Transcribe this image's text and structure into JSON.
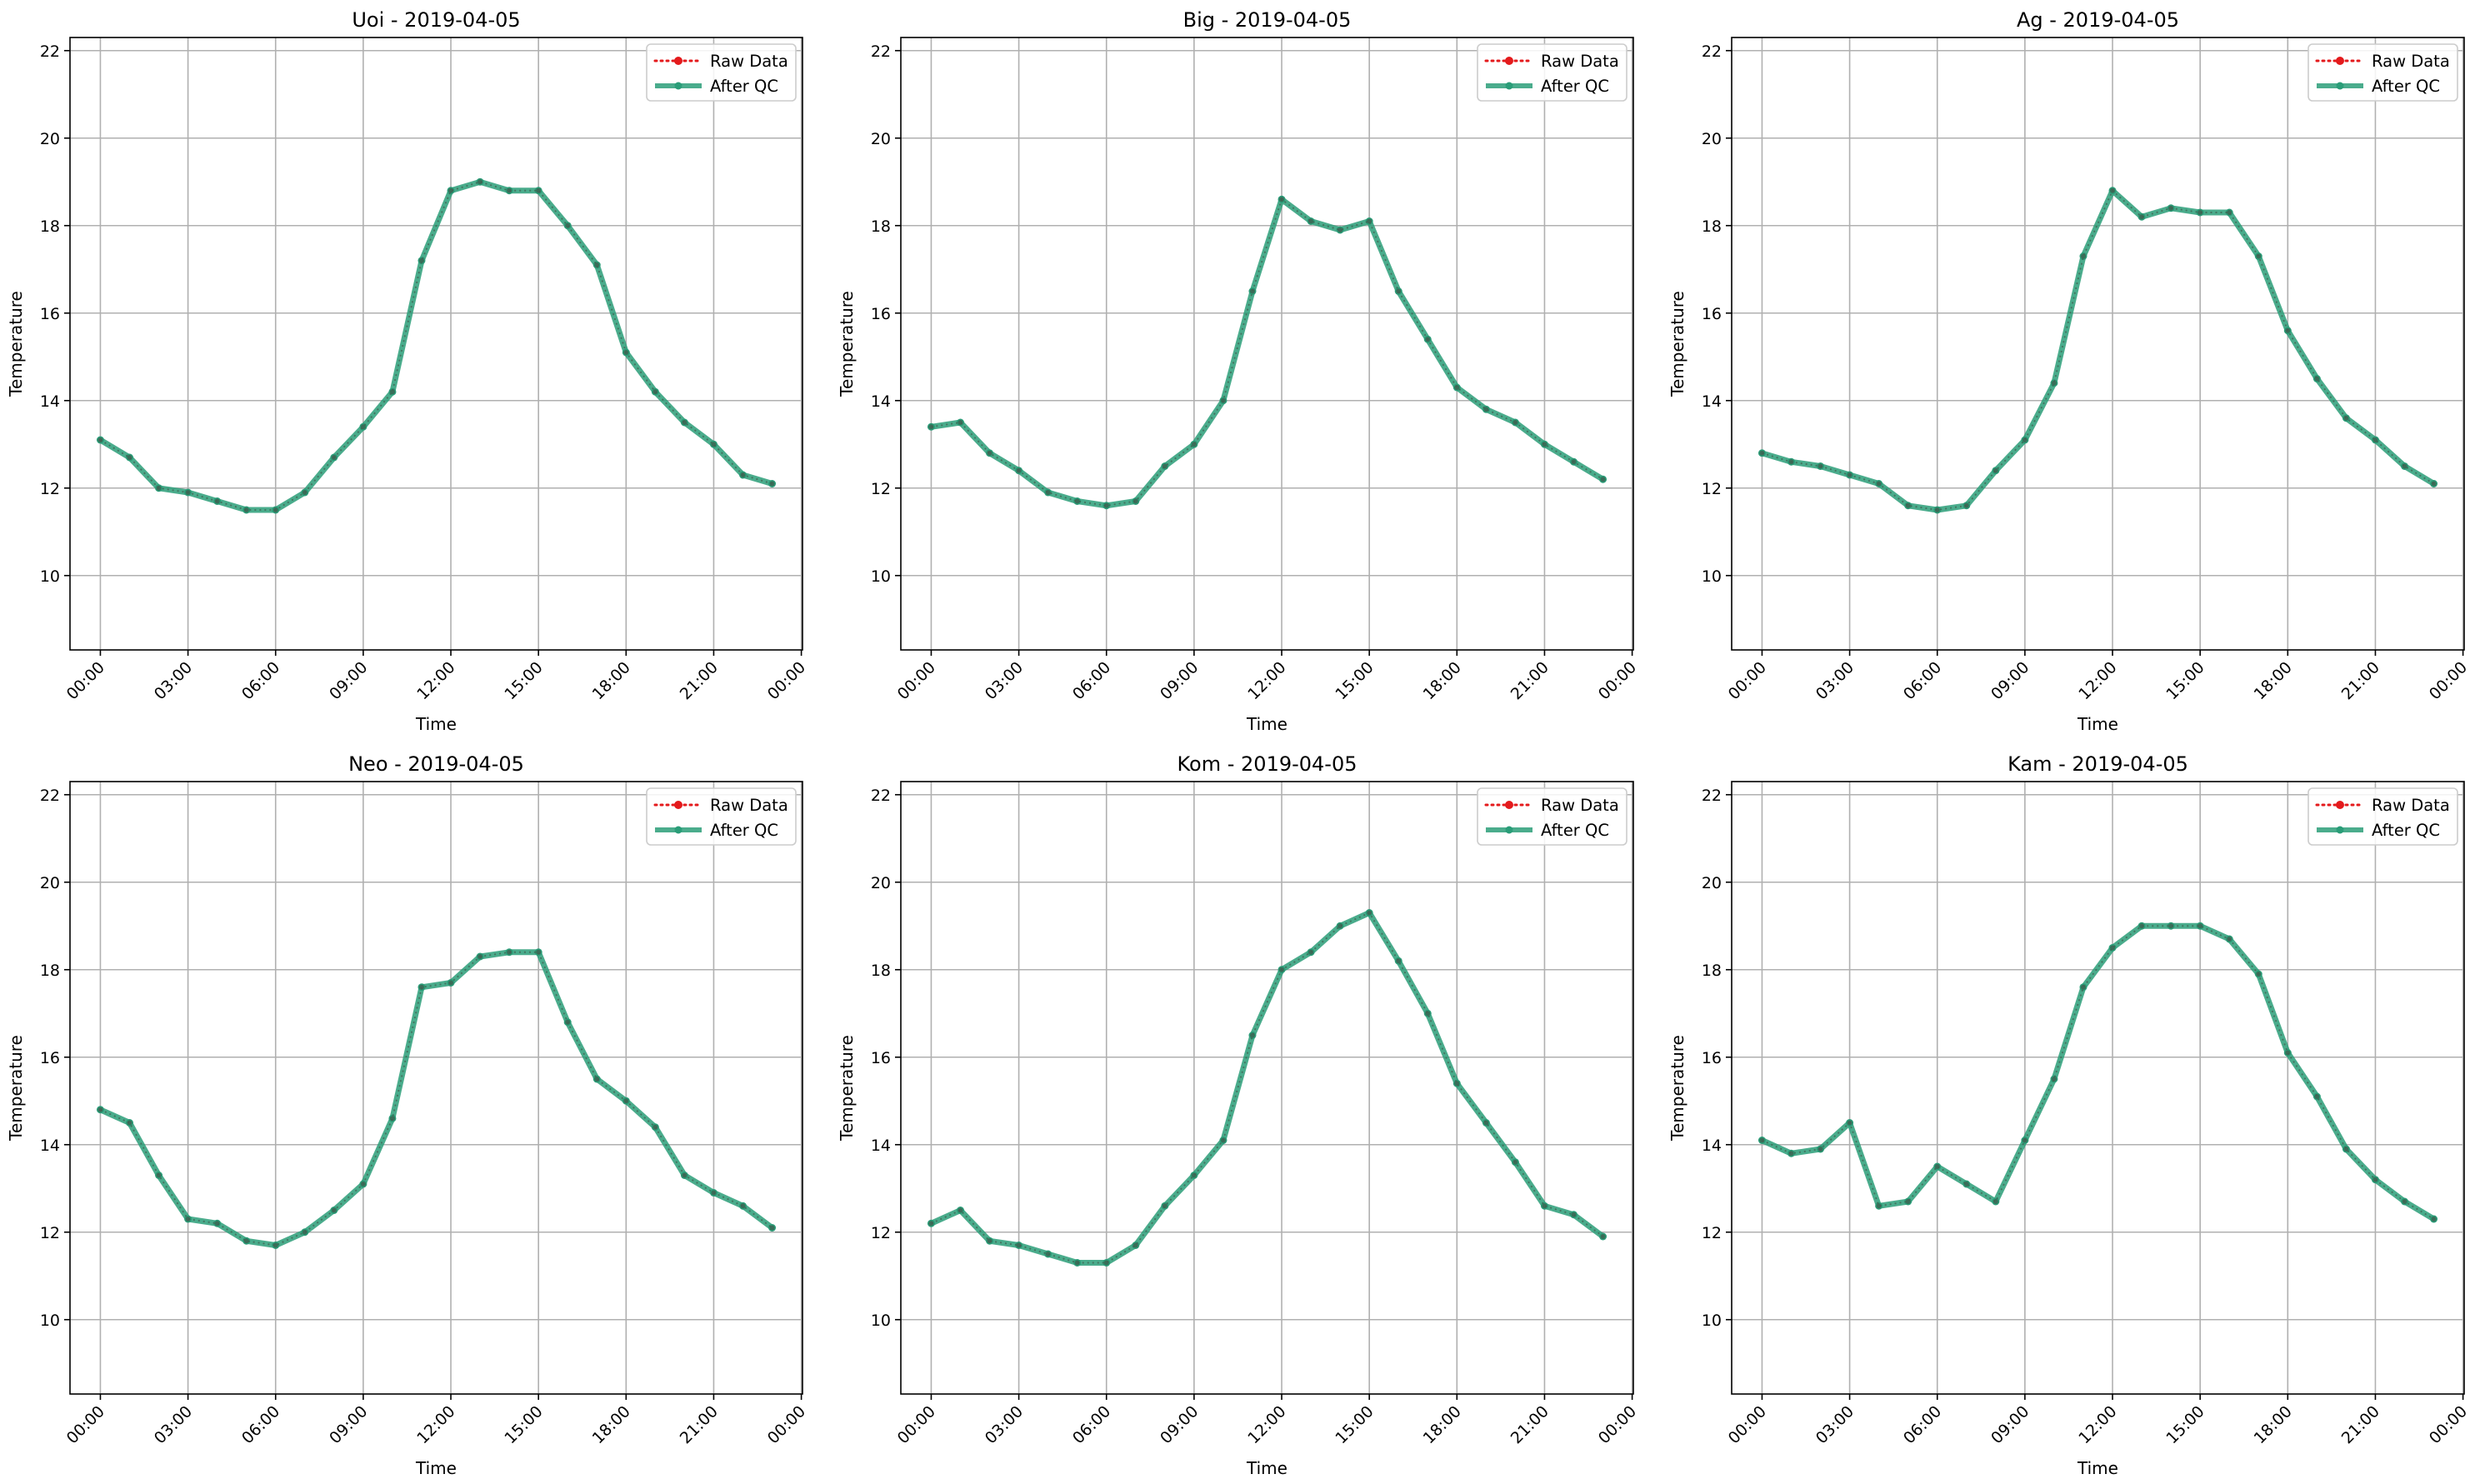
{
  "figure": {
    "series_styles": {
      "raw": {
        "name": "Raw Data",
        "color": "#e41a1c",
        "dash": "dotted"
      },
      "qc": {
        "name": "After QC",
        "color": "#2a9d78"
      }
    },
    "legend": {
      "raw": "Raw Data",
      "qc": "After QC"
    }
  },
  "chart_data": [
    {
      "type": "line",
      "title": "Uoi - 2019-04-05",
      "xlabel": "Time",
      "ylabel": "Temperature",
      "ylim": [
        8.3,
        22.3
      ],
      "yticks": [
        "10",
        "12",
        "14",
        "16",
        "18",
        "20",
        "22"
      ],
      "xticks": [
        "00:00",
        "03:00",
        "06:00",
        "09:00",
        "12:00",
        "15:00",
        "18:00",
        "21:00",
        "00:00"
      ],
      "x": [
        "00:00",
        "01:00",
        "02:00",
        "03:00",
        "04:00",
        "05:00",
        "06:00",
        "07:00",
        "08:00",
        "09:00",
        "10:00",
        "11:00",
        "12:00",
        "13:00",
        "14:00",
        "15:00",
        "16:00",
        "17:00",
        "18:00",
        "19:00",
        "20:00",
        "21:00",
        "22:00",
        "23:00"
      ],
      "series": [
        {
          "name": "Raw Data",
          "values": [
            13.1,
            12.7,
            12.0,
            11.9,
            11.7,
            11.5,
            11.5,
            11.9,
            12.7,
            13.4,
            14.2,
            17.2,
            18.8,
            19.0,
            18.8,
            18.8,
            18.0,
            17.1,
            15.1,
            14.2,
            13.5,
            13.0,
            12.3,
            12.1
          ]
        },
        {
          "name": "After QC",
          "values": [
            13.1,
            12.7,
            12.0,
            11.9,
            11.7,
            11.5,
            11.5,
            11.9,
            12.7,
            13.4,
            14.2,
            17.2,
            18.8,
            19.0,
            18.8,
            18.8,
            18.0,
            17.1,
            15.1,
            14.2,
            13.5,
            13.0,
            12.3,
            12.1
          ]
        }
      ],
      "grid": true,
      "legend_position": "top-right"
    },
    {
      "type": "line",
      "title": "Big - 2019-04-05",
      "xlabel": "Time",
      "ylabel": "Temperature",
      "ylim": [
        8.3,
        22.3
      ],
      "yticks": [
        "10",
        "12",
        "14",
        "16",
        "18",
        "20",
        "22"
      ],
      "xticks": [
        "00:00",
        "03:00",
        "06:00",
        "09:00",
        "12:00",
        "15:00",
        "18:00",
        "21:00",
        "00:00"
      ],
      "x": [
        "00:00",
        "01:00",
        "02:00",
        "03:00",
        "04:00",
        "05:00",
        "06:00",
        "07:00",
        "08:00",
        "09:00",
        "10:00",
        "11:00",
        "12:00",
        "13:00",
        "14:00",
        "15:00",
        "16:00",
        "17:00",
        "18:00",
        "19:00",
        "20:00",
        "21:00",
        "22:00",
        "23:00"
      ],
      "series": [
        {
          "name": "Raw Data",
          "values": [
            13.4,
            13.5,
            12.8,
            12.4,
            11.9,
            11.7,
            11.6,
            11.7,
            12.5,
            13.0,
            14.0,
            16.5,
            18.6,
            18.1,
            17.9,
            18.1,
            16.5,
            15.4,
            14.3,
            13.8,
            13.5,
            13.0,
            12.6,
            12.2
          ]
        },
        {
          "name": "After QC",
          "values": [
            13.4,
            13.5,
            12.8,
            12.4,
            11.9,
            11.7,
            11.6,
            11.7,
            12.5,
            13.0,
            14.0,
            16.5,
            18.6,
            18.1,
            17.9,
            18.1,
            16.5,
            15.4,
            14.3,
            13.8,
            13.5,
            13.0,
            12.6,
            12.2
          ]
        }
      ],
      "grid": true,
      "legend_position": "top-right"
    },
    {
      "type": "line",
      "title": "Ag - 2019-04-05",
      "xlabel": "Time",
      "ylabel": "Temperature",
      "ylim": [
        8.3,
        22.3
      ],
      "yticks": [
        "10",
        "12",
        "14",
        "16",
        "18",
        "20",
        "22"
      ],
      "xticks": [
        "00:00",
        "03:00",
        "06:00",
        "09:00",
        "12:00",
        "15:00",
        "18:00",
        "21:00",
        "00:00"
      ],
      "x": [
        "00:00",
        "01:00",
        "02:00",
        "03:00",
        "04:00",
        "05:00",
        "06:00",
        "07:00",
        "08:00",
        "09:00",
        "10:00",
        "11:00",
        "12:00",
        "13:00",
        "14:00",
        "15:00",
        "16:00",
        "17:00",
        "18:00",
        "19:00",
        "20:00",
        "21:00",
        "22:00",
        "23:00"
      ],
      "series": [
        {
          "name": "Raw Data",
          "values": [
            12.8,
            12.6,
            12.5,
            12.3,
            12.1,
            11.6,
            11.5,
            11.6,
            12.4,
            13.1,
            14.4,
            17.3,
            18.8,
            18.2,
            18.4,
            18.3,
            18.3,
            17.3,
            15.6,
            14.5,
            13.6,
            13.1,
            12.5,
            12.1
          ]
        },
        {
          "name": "After QC",
          "values": [
            12.8,
            12.6,
            12.5,
            12.3,
            12.1,
            11.6,
            11.5,
            11.6,
            12.4,
            13.1,
            14.4,
            17.3,
            18.8,
            18.2,
            18.4,
            18.3,
            18.3,
            17.3,
            15.6,
            14.5,
            13.6,
            13.1,
            12.5,
            12.1
          ]
        }
      ],
      "grid": true,
      "legend_position": "top-right"
    },
    {
      "type": "line",
      "title": "Neo - 2019-04-05",
      "xlabel": "Time",
      "ylabel": "Temperature",
      "ylim": [
        8.3,
        22.3
      ],
      "yticks": [
        "10",
        "12",
        "14",
        "16",
        "18",
        "20",
        "22"
      ],
      "xticks": [
        "00:00",
        "03:00",
        "06:00",
        "09:00",
        "12:00",
        "15:00",
        "18:00",
        "21:00",
        "00:00"
      ],
      "x": [
        "00:00",
        "01:00",
        "02:00",
        "03:00",
        "04:00",
        "05:00",
        "06:00",
        "07:00",
        "08:00",
        "09:00",
        "10:00",
        "11:00",
        "12:00",
        "13:00",
        "14:00",
        "15:00",
        "16:00",
        "17:00",
        "18:00",
        "19:00",
        "20:00",
        "21:00",
        "22:00",
        "23:00"
      ],
      "series": [
        {
          "name": "Raw Data",
          "values": [
            14.8,
            14.5,
            13.3,
            12.3,
            12.2,
            11.8,
            11.7,
            12.0,
            12.5,
            13.1,
            14.6,
            17.6,
            17.7,
            18.3,
            18.4,
            18.4,
            16.8,
            15.5,
            15.0,
            14.4,
            13.3,
            12.9,
            12.6,
            12.1
          ]
        },
        {
          "name": "After QC",
          "values": [
            14.8,
            14.5,
            13.3,
            12.3,
            12.2,
            11.8,
            11.7,
            12.0,
            12.5,
            13.1,
            14.6,
            17.6,
            17.7,
            18.3,
            18.4,
            18.4,
            16.8,
            15.5,
            15.0,
            14.4,
            13.3,
            12.9,
            12.6,
            12.1
          ]
        }
      ],
      "grid": true,
      "legend_position": "top-right"
    },
    {
      "type": "line",
      "title": "Kom - 2019-04-05",
      "xlabel": "Time",
      "ylabel": "Temperature",
      "ylim": [
        8.3,
        22.3
      ],
      "yticks": [
        "10",
        "12",
        "14",
        "16",
        "18",
        "20",
        "22"
      ],
      "xticks": [
        "00:00",
        "03:00",
        "06:00",
        "09:00",
        "12:00",
        "15:00",
        "18:00",
        "21:00",
        "00:00"
      ],
      "x": [
        "00:00",
        "01:00",
        "02:00",
        "03:00",
        "04:00",
        "05:00",
        "06:00",
        "07:00",
        "08:00",
        "09:00",
        "10:00",
        "11:00",
        "12:00",
        "13:00",
        "14:00",
        "15:00",
        "16:00",
        "17:00",
        "18:00",
        "19:00",
        "20:00",
        "21:00",
        "22:00",
        "23:00"
      ],
      "series": [
        {
          "name": "Raw Data",
          "values": [
            12.2,
            12.5,
            11.8,
            11.7,
            11.5,
            11.3,
            11.3,
            11.7,
            12.6,
            13.3,
            14.1,
            16.5,
            18.0,
            18.4,
            19.0,
            19.3,
            18.2,
            17.0,
            15.4,
            14.5,
            13.6,
            12.6,
            12.4,
            11.9
          ]
        },
        {
          "name": "After QC",
          "values": [
            12.2,
            12.5,
            11.8,
            11.7,
            11.5,
            11.3,
            11.3,
            11.7,
            12.6,
            13.3,
            14.1,
            16.5,
            18.0,
            18.4,
            19.0,
            19.3,
            18.2,
            17.0,
            15.4,
            14.5,
            13.6,
            12.6,
            12.4,
            11.9
          ]
        }
      ],
      "grid": true,
      "legend_position": "top-right"
    },
    {
      "type": "line",
      "title": "Kam - 2019-04-05",
      "xlabel": "Time",
      "ylabel": "Temperature",
      "ylim": [
        8.3,
        22.3
      ],
      "yticks": [
        "10",
        "12",
        "14",
        "16",
        "18",
        "20",
        "22"
      ],
      "xticks": [
        "00:00",
        "03:00",
        "06:00",
        "09:00",
        "12:00",
        "15:00",
        "18:00",
        "21:00",
        "00:00"
      ],
      "x": [
        "00:00",
        "01:00",
        "02:00",
        "03:00",
        "04:00",
        "05:00",
        "06:00",
        "07:00",
        "08:00",
        "09:00",
        "10:00",
        "11:00",
        "12:00",
        "13:00",
        "14:00",
        "15:00",
        "16:00",
        "17:00",
        "18:00",
        "19:00",
        "20:00",
        "21:00",
        "22:00",
        "23:00"
      ],
      "series": [
        {
          "name": "Raw Data",
          "values": [
            14.1,
            13.8,
            13.9,
            14.5,
            12.6,
            12.7,
            13.5,
            13.1,
            12.7,
            14.1,
            15.5,
            17.6,
            18.5,
            19.0,
            19.0,
            19.0,
            18.7,
            17.9,
            16.1,
            15.1,
            13.9,
            13.2,
            12.7,
            12.3
          ]
        },
        {
          "name": "After QC",
          "values": [
            14.1,
            13.8,
            13.9,
            14.5,
            12.6,
            12.7,
            13.5,
            13.1,
            12.7,
            14.1,
            15.5,
            17.6,
            18.5,
            19.0,
            19.0,
            19.0,
            18.7,
            17.9,
            16.1,
            15.1,
            13.9,
            13.2,
            12.7,
            12.3
          ]
        }
      ],
      "grid": true,
      "legend_position": "top-right"
    }
  ]
}
